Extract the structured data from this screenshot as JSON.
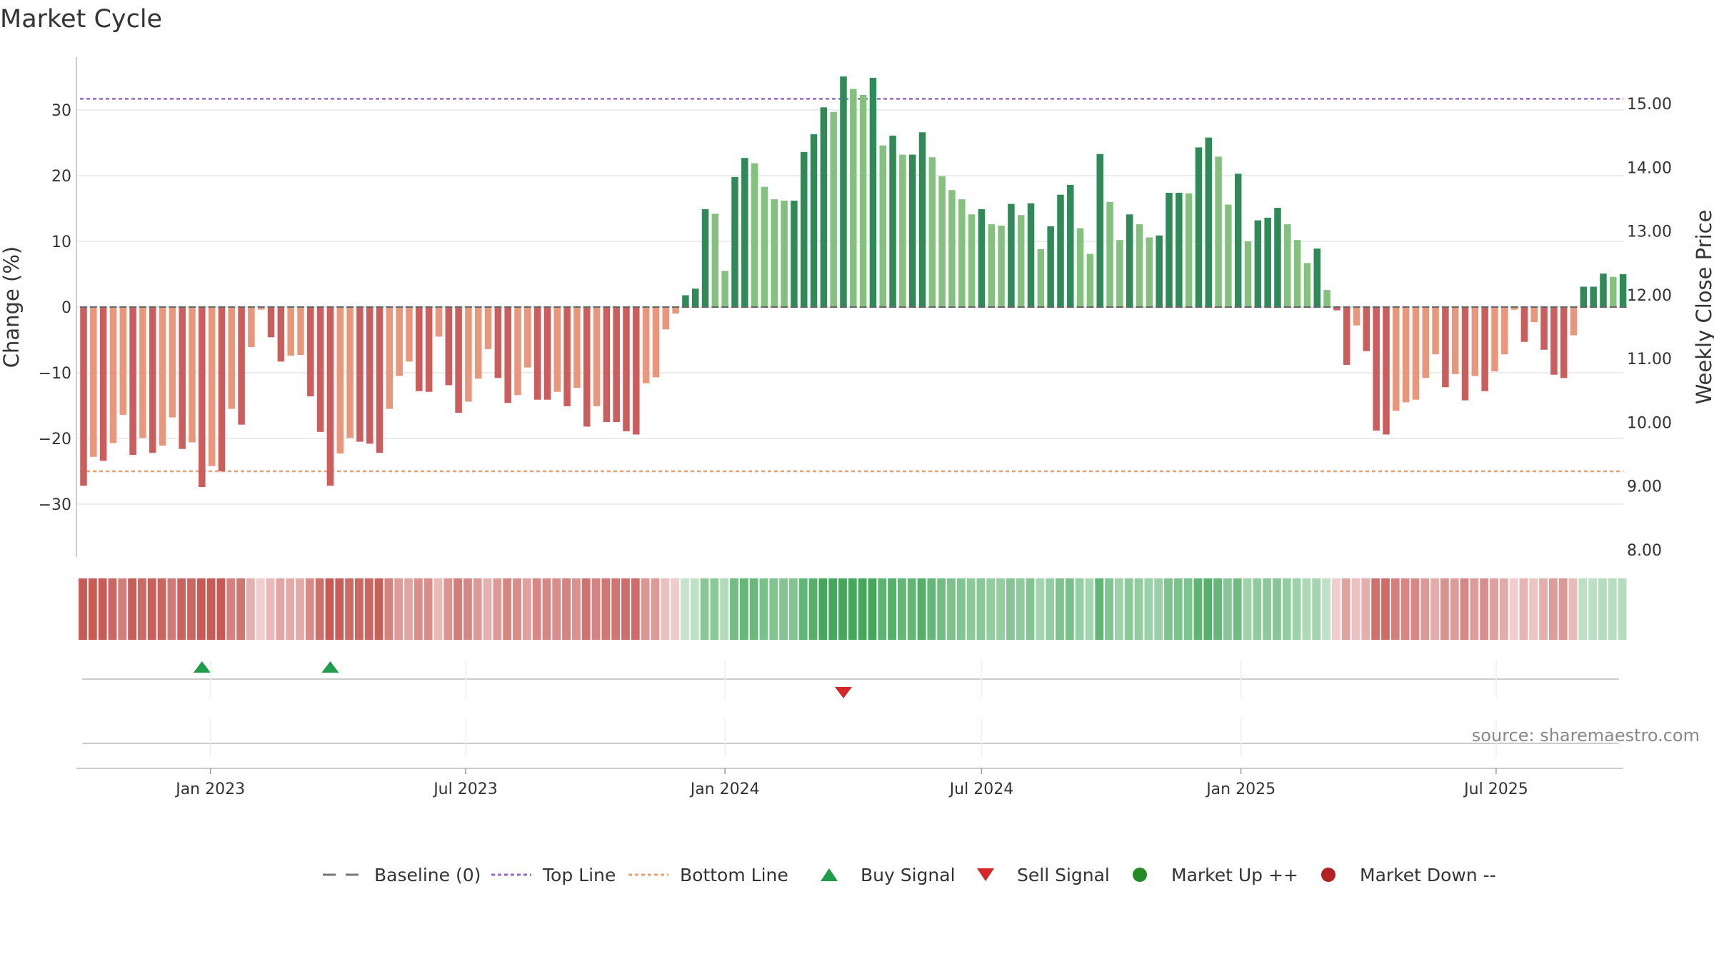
{
  "chart_data": {
    "type": "bar",
    "title": "Market Cycle",
    "ylabel_left": "Change (%)",
    "ylabel_right": "Weekly Close Price",
    "source": "source: sharemaestro.com",
    "y_left_ticks": [
      "30",
      "20",
      "10",
      "0",
      "−10",
      "−20",
      "−30"
    ],
    "y_left_tick_values": [
      30,
      20,
      10,
      0,
      -10,
      -20,
      -30
    ],
    "ylim_left": [
      -38,
      38
    ],
    "y_right_ticks": [
      "15.00",
      "14.00",
      "13.00",
      "12.00",
      "11.00",
      "10.00",
      "9.00",
      "8.00"
    ],
    "y_right_tick_values": [
      15,
      14,
      13,
      12,
      11,
      10,
      9,
      8
    ],
    "ylim_right": [
      8,
      15.75
    ],
    "x_ticks": [
      "Jan 2023",
      "Jul 2023",
      "Jan 2024",
      "Jul 2024",
      "Jan 2025",
      "Jul 2025"
    ],
    "x_tick_dates": [
      "2023-01-01",
      "2023-07-01",
      "2024-01-01",
      "2024-07-01",
      "2025-01-01",
      "2025-07-01"
    ],
    "first_week": "2022-10-03",
    "top_line": 31.7,
    "bottom_line": -25,
    "values": [
      -27.2,
      -22.8,
      -23.4,
      -20.7,
      -16.4,
      -22.5,
      -19.9,
      -22.2,
      -21.1,
      -16.8,
      -21.6,
      -20.6,
      -27.4,
      -24.2,
      -25.0,
      -15.5,
      -17.9,
      -6.1,
      -0.4,
      -4.6,
      -8.3,
      -7.4,
      -7.3,
      -13.6,
      -19.0,
      -27.2,
      -22.3,
      -19.9,
      -20.5,
      -20.8,
      -22.2,
      -15.5,
      -10.5,
      -8.3,
      -12.8,
      -12.9,
      -4.5,
      -11.9,
      -16.1,
      -14.4,
      -10.9,
      -6.4,
      -10.8,
      -14.6,
      -13.4,
      -9.2,
      -14.1,
      -14.1,
      -12.9,
      -15.1,
      -12.3,
      -18.2,
      -15.1,
      -17.5,
      -17.5,
      -18.9,
      -19.4,
      -11.6,
      -10.7,
      -3.4,
      -1.0,
      1.8,
      2.8,
      14.9,
      14.2,
      5.5,
      19.8,
      22.7,
      21.9,
      18.3,
      16.4,
      16.2,
      16.2,
      23.6,
      26.3,
      30.4,
      29.7,
      35.1,
      33.2,
      32.3,
      34.9,
      24.6,
      26.1,
      23.2,
      23.2,
      26.6,
      22.8,
      19.9,
      17.8,
      16.4,
      14.1,
      14.9,
      12.6,
      12.4,
      15.7,
      14.0,
      15.8,
      8.8,
      12.3,
      17.1,
      18.6,
      12.0,
      8.1,
      23.3,
      16.0,
      10.2,
      14.1,
      12.6,
      10.6,
      10.9,
      17.4,
      17.4,
      17.3,
      24.3,
      25.8,
      22.9,
      15.6,
      20.3,
      10.0,
      13.2,
      13.6,
      15.1,
      12.6,
      10.2,
      6.7,
      8.9,
      2.6,
      -0.5,
      -8.8,
      -2.8,
      -6.7,
      -18.8,
      -19.4,
      -15.8,
      -14.5,
      -14.1,
      -10.8,
      -7.2,
      -12.2,
      -10.2,
      -14.2,
      -10.5,
      -12.8,
      -9.8,
      -7.2,
      -0.4,
      -5.3,
      -2.3,
      -6.5,
      -10.3,
      -10.8,
      -4.3,
      3.1,
      3.1,
      5.1,
      4.6,
      5.0
    ],
    "buy_signal_weeks": [
      12,
      25
    ],
    "sell_signal_weeks": [
      77
    ],
    "top_line_color": "#9966CC",
    "bottom_line_color": "#E8A070",
    "grid": true
  },
  "legend": [
    {
      "label": "Baseline (0)",
      "icon": "dash-line",
      "color": "#777777"
    },
    {
      "label": "Top Line",
      "icon": "dotted-line",
      "color": "#9966CC"
    },
    {
      "label": "Bottom Line",
      "icon": "dotted-line",
      "color": "#E8A070"
    },
    {
      "label": "Buy Signal",
      "icon": "triangle-up",
      "color": "#1E9E4A"
    },
    {
      "label": "Sell Signal",
      "icon": "triangle-down",
      "color": "#D62728"
    },
    {
      "label": "Market Up ++",
      "icon": "circle",
      "color": "#228B22"
    },
    {
      "label": "Market Down --",
      "icon": "circle",
      "color": "#B22222"
    }
  ],
  "colors": {
    "strong_up": "#2E8B57",
    "weak_up": "#85C17E",
    "strong_down": "#CD5C5C",
    "weak_down": "#E9967A"
  }
}
